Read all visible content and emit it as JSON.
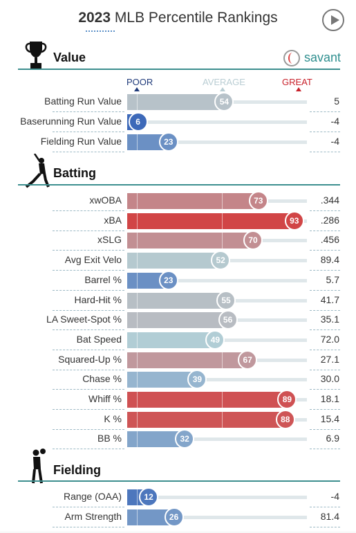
{
  "header": {
    "year": "2023",
    "title_rest": "MLB Percentile Rankings"
  },
  "brand": {
    "name": "savant"
  },
  "scale": {
    "poor": "POOR",
    "average": "AVERAGE",
    "great": "GREAT"
  },
  "colors": {
    "accent": "#3d8f8f",
    "poor_blue": "#2d5bb5",
    "great_red": "#d62e2e",
    "neutral": "#b4cfd6"
  },
  "sections": [
    {
      "title": "Value",
      "icon": "trophy-icon",
      "metrics": [
        {
          "label": "Batting Run Value",
          "percentile": 54,
          "value": "5"
        },
        {
          "label": "Baserunning Run Value",
          "percentile": 6,
          "value": "-4"
        },
        {
          "label": "Fielding Run Value",
          "percentile": 23,
          "value": "-4"
        }
      ]
    },
    {
      "title": "Batting",
      "icon": "batter-icon",
      "metrics": [
        {
          "label": "xwOBA",
          "percentile": 73,
          "value": ".344"
        },
        {
          "label": "xBA",
          "percentile": 93,
          "value": ".286"
        },
        {
          "label": "xSLG",
          "percentile": 70,
          "value": ".456"
        },
        {
          "label": "Avg Exit Velo",
          "percentile": 52,
          "value": "89.4"
        },
        {
          "label": "Barrel %",
          "percentile": 23,
          "value": "5.7"
        },
        {
          "label": "Hard-Hit %",
          "percentile": 55,
          "value": "41.7"
        },
        {
          "label": "LA Sweet-Spot %",
          "percentile": 56,
          "value": "35.1"
        },
        {
          "label": "Bat Speed",
          "percentile": 49,
          "value": "72.0"
        },
        {
          "label": "Squared-Up %",
          "percentile": 67,
          "value": "27.1"
        },
        {
          "label": "Chase %",
          "percentile": 39,
          "value": "30.0"
        },
        {
          "label": "Whiff %",
          "percentile": 89,
          "value": "18.1"
        },
        {
          "label": "K %",
          "percentile": 88,
          "value": "15.4"
        },
        {
          "label": "BB %",
          "percentile": 32,
          "value": "6.9"
        }
      ]
    },
    {
      "title": "Fielding",
      "icon": "fielder-icon",
      "metrics": [
        {
          "label": "Range (OAA)",
          "percentile": 12,
          "value": "-4"
        },
        {
          "label": "Arm Strength",
          "percentile": 26,
          "value": "81.4"
        }
      ]
    }
  ]
}
